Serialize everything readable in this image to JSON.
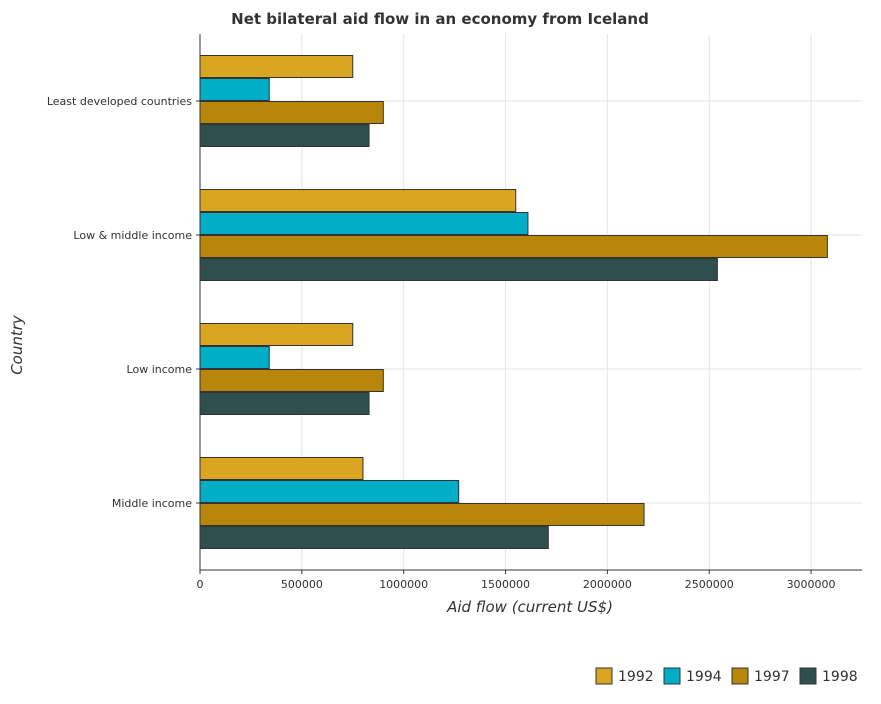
{
  "chart_data": {
    "type": "bar",
    "orientation": "horizontal",
    "title": "Net bilateral aid flow in an economy from Iceland",
    "xlabel": "Aid flow (current US$)",
    "ylabel": "Country",
    "categories": [
      "Least developed countries",
      "Low & middle income",
      "Low income",
      "Middle income"
    ],
    "series": [
      {
        "name": "1992",
        "color": "#DAA520",
        "values": [
          750000,
          1550000,
          750000,
          800000
        ]
      },
      {
        "name": "1994",
        "color": "#00AEC8",
        "values": [
          340000,
          1610000,
          340000,
          1270000
        ]
      },
      {
        "name": "1997",
        "color": "#B8860B",
        "values": [
          900000,
          3080000,
          900000,
          2180000
        ]
      },
      {
        "name": "1998",
        "color": "#2F4F4F",
        "values": [
          830000,
          2540000,
          830000,
          1710000
        ]
      }
    ],
    "xlim": [
      0,
      3250000
    ],
    "xticks": [
      0,
      500000,
      1000000,
      1500000,
      2000000,
      2500000,
      3000000
    ],
    "xtick_labels": [
      "0",
      "500000",
      "1000000",
      "1500000",
      "2000000",
      "2500000",
      "3000000"
    ],
    "grid": true,
    "legend_position": "bottom-right"
  }
}
